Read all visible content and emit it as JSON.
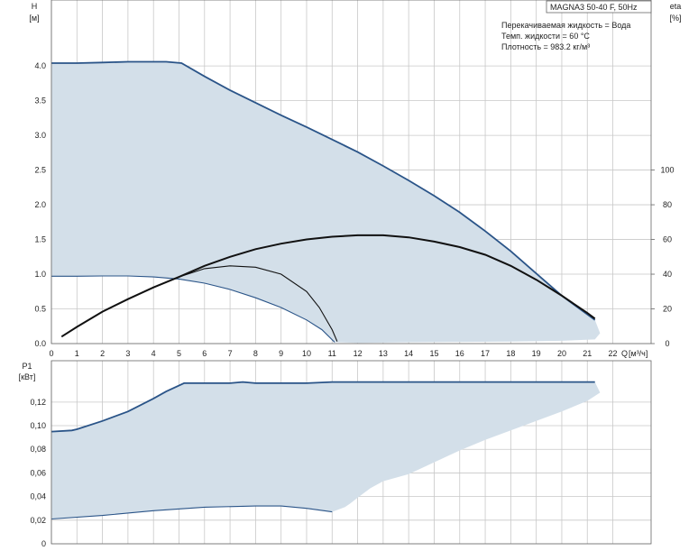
{
  "header": {
    "product": "MAGNA3 50-40 F, 50Hz",
    "info": [
      "Перекачиваемая жидкость = Вода",
      "Темп. жидкости = 60 °C",
      "Плотность = 983.2 кг/м³"
    ]
  },
  "colors": {
    "fill": "#d3dfe9",
    "curve": "#2a5488",
    "eta": "#111111",
    "grid": "#c8c8c8"
  },
  "chart_data": [
    {
      "type": "area",
      "id": "head",
      "ylabel": "H",
      "yunit": "[м]",
      "ylabel_right": "eta",
      "yunit_right": "[%]",
      "xlabel": "Q",
      "xunit": "[м³/ч]",
      "xlim": [
        0,
        23.5
      ],
      "ylim": [
        0,
        4.95
      ],
      "xticks": [
        "0",
        "1",
        "2",
        "3",
        "4",
        "5",
        "6",
        "7",
        "8",
        "9",
        "10",
        "11",
        "12",
        "13",
        "14",
        "15",
        "16",
        "17",
        "18",
        "19",
        "20",
        "21",
        "22"
      ],
      "yticks": [
        "0.0",
        "0.5",
        "1.0",
        "1.5",
        "2.0",
        "2.5",
        "3.0",
        "3.5",
        "4.0"
      ],
      "yticks_right": [
        "0",
        "20",
        "40",
        "60",
        "80",
        "100"
      ],
      "eta_range": [
        0,
        100
      ],
      "grid": true,
      "series": [
        {
          "role": "max_curve",
          "points": [
            [
              0,
              4.04
            ],
            [
              1,
              4.04
            ],
            [
              2,
              4.05
            ],
            [
              3,
              4.06
            ],
            [
              4,
              4.06
            ],
            [
              4.5,
              4.06
            ],
            [
              5.1,
              4.04
            ],
            [
              6,
              3.85
            ],
            [
              7,
              3.65
            ],
            [
              8,
              3.47
            ],
            [
              9,
              3.29
            ],
            [
              10,
              3.12
            ],
            [
              11,
              2.94
            ],
            [
              12,
              2.76
            ],
            [
              13,
              2.56
            ],
            [
              14,
              2.35
            ],
            [
              15,
              2.13
            ],
            [
              16,
              1.89
            ],
            [
              17,
              1.62
            ],
            [
              18,
              1.33
            ],
            [
              19,
              1.01
            ],
            [
              20,
              0.69
            ],
            [
              21,
              0.42
            ],
            [
              21.3,
              0.34
            ]
          ]
        },
        {
          "role": "min_curve",
          "points": [
            [
              0,
              0.97
            ],
            [
              1,
              0.97
            ],
            [
              2,
              0.975
            ],
            [
              3,
              0.975
            ],
            [
              4,
              0.96
            ],
            [
              5,
              0.93
            ],
            [
              6,
              0.87
            ],
            [
              7,
              0.78
            ],
            [
              8,
              0.66
            ],
            [
              9,
              0.52
            ],
            [
              10,
              0.34
            ],
            [
              10.6,
              0.2
            ],
            [
              11.1,
              0.02
            ]
          ]
        },
        {
          "role": "area_outer",
          "points": [
            [
              21.3,
              0.34
            ],
            [
              21.5,
              0.15
            ],
            [
              21.3,
              0.06
            ],
            [
              20,
              0.04
            ],
            [
              18,
              0.03
            ],
            [
              16,
              0.025
            ],
            [
              14,
              0.02
            ],
            [
              12,
              0.01
            ],
            [
              11.1,
              0.02
            ]
          ]
        },
        {
          "role": "eta_max",
          "points": [
            [
              0.4,
              0.1
            ],
            [
              1,
              0.24
            ],
            [
              2,
              0.46
            ],
            [
              3,
              0.64
            ],
            [
              4,
              0.81
            ],
            [
              5,
              0.96
            ],
            [
              6,
              1.12
            ],
            [
              7,
              1.25
            ],
            [
              8,
              1.36
            ],
            [
              9,
              1.44
            ],
            [
              10,
              1.5
            ],
            [
              11,
              1.54
            ],
            [
              12,
              1.56
            ],
            [
              13,
              1.56
            ],
            [
              14,
              1.53
            ],
            [
              15,
              1.47
            ],
            [
              16,
              1.39
            ],
            [
              17,
              1.28
            ],
            [
              18,
              1.12
            ],
            [
              19,
              0.92
            ],
            [
              20,
              0.69
            ],
            [
              21,
              0.44
            ],
            [
              21.3,
              0.36
            ]
          ]
        },
        {
          "role": "eta_min",
          "points": [
            [
              0.4,
              0.1
            ],
            [
              1,
              0.24
            ],
            [
              2,
              0.46
            ],
            [
              3,
              0.64
            ],
            [
              4,
              0.81
            ],
            [
              5,
              0.96
            ],
            [
              6,
              1.08
            ],
            [
              7,
              1.12
            ],
            [
              8,
              1.1
            ],
            [
              9,
              1.0
            ],
            [
              10,
              0.75
            ],
            [
              10.5,
              0.52
            ],
            [
              11,
              0.2
            ],
            [
              11.2,
              0.03
            ]
          ]
        }
      ]
    },
    {
      "type": "area",
      "id": "power",
      "ylabel": "P1",
      "yunit": "[кВт]",
      "xlim": [
        0,
        23.5
      ],
      "ylim": [
        0,
        0.155
      ],
      "yticks": [
        "0",
        "0,02",
        "0,04",
        "0,06",
        "0,08",
        "0,10",
        "0,12"
      ],
      "grid": true,
      "series": [
        {
          "role": "max_curve",
          "points": [
            [
              0,
              0.095
            ],
            [
              0.8,
              0.096
            ],
            [
              1,
              0.097
            ],
            [
              2,
              0.104
            ],
            [
              3,
              0.112
            ],
            [
              4,
              0.123
            ],
            [
              4.5,
              0.129
            ],
            [
              5.2,
              0.136
            ],
            [
              6,
              0.136
            ],
            [
              7,
              0.136
            ],
            [
              7.5,
              0.137
            ],
            [
              8,
              0.136
            ],
            [
              9,
              0.136
            ],
            [
              10,
              0.136
            ],
            [
              11,
              0.137
            ],
            [
              12,
              0.137
            ],
            [
              14,
              0.137
            ],
            [
              16,
              0.137
            ],
            [
              18,
              0.137
            ],
            [
              20,
              0.137
            ],
            [
              21,
              0.137
            ],
            [
              21.3,
              0.137
            ]
          ]
        },
        {
          "role": "min_curve",
          "points": [
            [
              0,
              0.021
            ],
            [
              2,
              0.024
            ],
            [
              4,
              0.028
            ],
            [
              6,
              0.031
            ],
            [
              8,
              0.032
            ],
            [
              9,
              0.032
            ],
            [
              10,
              0.03
            ],
            [
              11,
              0.027
            ]
          ]
        },
        {
          "role": "area_outer",
          "points": [
            [
              21.3,
              0.137
            ],
            [
              21.5,
              0.128
            ],
            [
              21,
              0.121
            ],
            [
              20,
              0.112
            ],
            [
              19,
              0.104
            ],
            [
              18,
              0.096
            ],
            [
              17,
              0.088
            ],
            [
              16,
              0.079
            ],
            [
              15,
              0.069
            ],
            [
              14,
              0.059
            ],
            [
              13,
              0.053
            ],
            [
              12.5,
              0.047
            ],
            [
              12,
              0.039
            ],
            [
              11.7,
              0.034
            ],
            [
              11.5,
              0.031
            ],
            [
              11,
              0.027
            ]
          ]
        }
      ]
    }
  ]
}
